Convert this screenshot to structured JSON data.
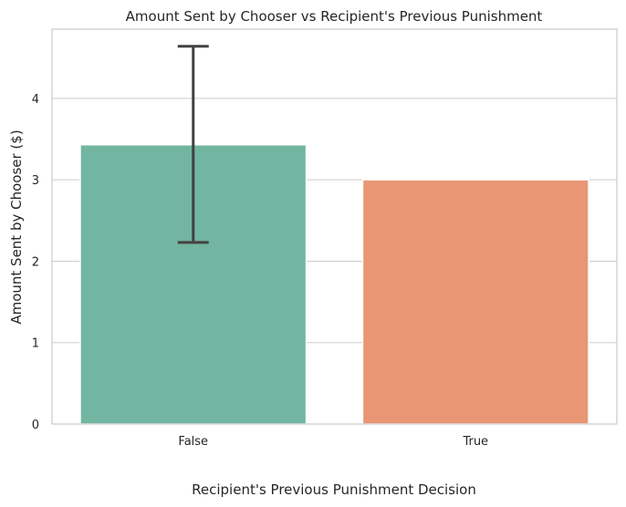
{
  "chart_data": {
    "type": "bar",
    "title": "Amount Sent by Chooser vs Recipient's Previous Punishment",
    "xlabel": "Recipient's Previous Punishment Decision",
    "ylabel": "Amount Sent by Chooser ($)",
    "categories": [
      "False",
      "True"
    ],
    "values": [
      3.43,
      3.0
    ],
    "error_bars": [
      {
        "category": "False",
        "low": 2.23,
        "high": 4.64
      },
      {
        "category": "True",
        "low": null,
        "high": null
      }
    ],
    "colors": [
      "#72b5a0",
      "#e89674"
    ],
    "ylim": [
      0,
      4.85
    ],
    "yticks": [
      0,
      1,
      2,
      3,
      4
    ],
    "grid": true
  }
}
